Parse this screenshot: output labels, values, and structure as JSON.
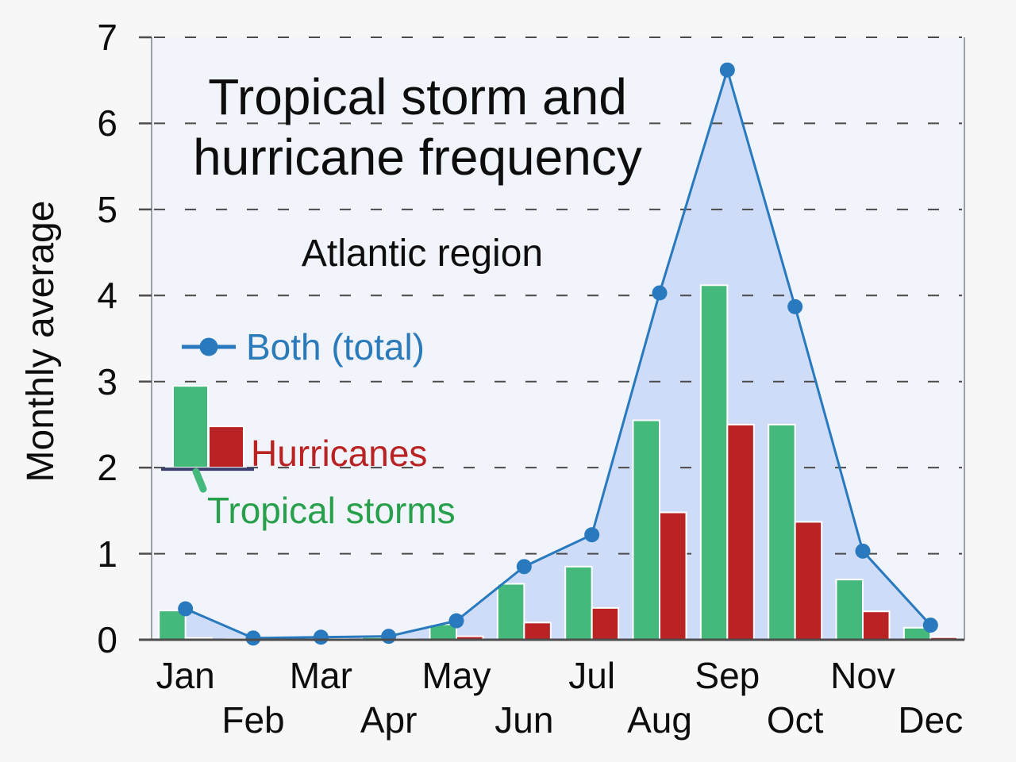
{
  "title": {
    "line1": "Tropical storm and",
    "line2": "hurricane frequency",
    "subtitle": "Atlantic region"
  },
  "y_axis": {
    "label": "Monthly average",
    "ticks": [
      0,
      1,
      2,
      3,
      4,
      5,
      6,
      7
    ],
    "max": 7
  },
  "legend": {
    "total": "Both (total)",
    "hurricanes": "Hurricanes",
    "tropical_storms": "Tropical storms"
  },
  "colors": {
    "tropical_storms": "#45b97c",
    "tropical_storms_text": "#28a04b",
    "hurricanes": "#b92323",
    "hurricanes_text": "#b92323",
    "total_line": "#2879bd",
    "total_text": "#2b7ab9",
    "total_fill": "#cedcf8",
    "legend_axis_navy": "#3a3f6e",
    "grid": "#4a4a4a",
    "axis_light": "#9aa0a6",
    "axis_dark": "#4d4d4d",
    "plot_bg": "#f2f4fb",
    "page_bg": "#f7f7f7",
    "text": "#0d0d0d",
    "bar_outline": "#ffffff"
  },
  "chart_data": {
    "type": "combo-bar-line-area",
    "categories": [
      "Jan",
      "Feb",
      "Mar",
      "Apr",
      "May",
      "Jun",
      "Jul",
      "Aug",
      "Sep",
      "Oct",
      "Nov",
      "Dec"
    ],
    "series": [
      {
        "name": "Tropical storms",
        "type": "bar",
        "values": [
          0.34,
          0.01,
          0.02,
          0.03,
          0.18,
          0.65,
          0.85,
          2.55,
          4.12,
          2.5,
          0.7,
          0.14
        ]
      },
      {
        "name": "Hurricanes",
        "type": "bar",
        "values": [
          0.02,
          0.01,
          0.01,
          0.01,
          0.04,
          0.2,
          0.37,
          1.48,
          2.5,
          1.37,
          0.33,
          0.03
        ]
      },
      {
        "name": "Both (total)",
        "type": "line-area",
        "values": [
          0.36,
          0.02,
          0.03,
          0.04,
          0.22,
          0.85,
          1.22,
          4.03,
          6.62,
          3.87,
          1.03,
          0.17
        ]
      }
    ],
    "title": "Tropical storm and hurricane frequency",
    "subtitle": "Atlantic region",
    "xlabel": "",
    "ylabel": "Monthly average",
    "ylim": [
      0,
      7
    ],
    "grid": "dashed-horizontal",
    "legend_position": "inside-upper-left",
    "legend_sample_bars": {
      "baseline_value": 2.0,
      "tropical_storms_top": 2.95,
      "hurricanes_top": 2.48
    }
  }
}
